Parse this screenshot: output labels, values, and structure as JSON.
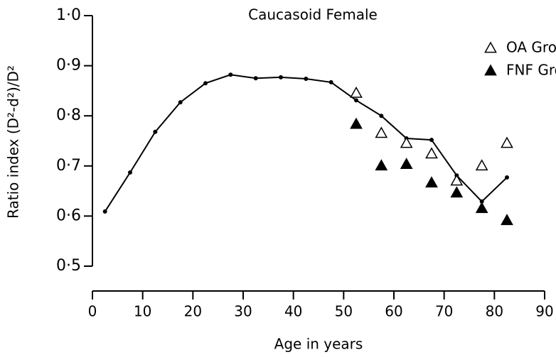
{
  "chart_data": {
    "type": "line",
    "title": "Caucasoid Female",
    "xlabel": "Age in years",
    "ylabel": "Ratio index (D²-d²)/D²",
    "x": [
      2.5,
      7.5,
      12.5,
      17.5,
      22.5,
      27.5,
      32.5,
      37.5,
      42.5,
      47.5,
      52.5,
      57.5,
      62.5,
      67.5,
      72.5,
      77.5,
      82.5
    ],
    "values": [
      0.609,
      0.687,
      0.768,
      0.827,
      0.865,
      0.882,
      0.875,
      0.877,
      0.874,
      0.867,
      0.831,
      0.8,
      0.755,
      0.752,
      0.681,
      0.629,
      0.677
    ],
    "color": "#000000",
    "series": [
      {
        "name": "OA Group",
        "color": "#000000",
        "filled": false,
        "x": [
          52.5,
          57.5,
          62.5,
          67.5,
          72.5,
          77.5,
          82.5
        ],
        "values": [
          0.845,
          0.765,
          0.745,
          0.724,
          0.67,
          0.7,
          0.745
        ]
      },
      {
        "name": "FNF Group",
        "color": "#000000",
        "filled": true,
        "x": [
          52.5,
          57.5,
          62.5,
          67.5,
          72.5,
          77.5,
          82.5
        ],
        "values": [
          0.783,
          0.7,
          0.703,
          0.666,
          0.646,
          0.615,
          0.591
        ]
      }
    ],
    "xlim": [
      0,
      90
    ],
    "xticks": [
      0,
      10,
      20,
      30,
      40,
      50,
      60,
      70,
      80,
      90
    ],
    "ylim": [
      0.5,
      1.0
    ],
    "yticks": [
      {
        "value": 0.5,
        "label": "0·5"
      },
      {
        "value": 0.6,
        "label": "0·6"
      },
      {
        "value": 0.7,
        "label": "0·7"
      },
      {
        "value": 0.8,
        "label": "0·8"
      },
      {
        "value": 0.9,
        "label": "0·9"
      },
      {
        "value": 1.0,
        "label": "1·0"
      }
    ],
    "legend": "top-right",
    "grid": false
  }
}
